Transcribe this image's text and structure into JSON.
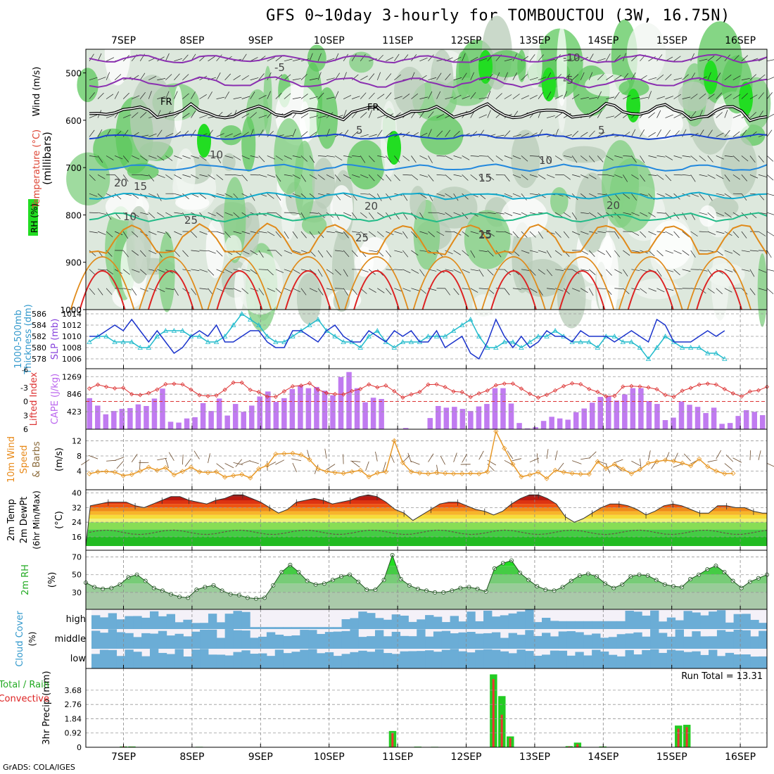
{
  "title": "GFS 0~10day 3-hourly for TOMBOUCTOU (3W, 16.75N)",
  "footer": "GrADS: COLA/IGES",
  "dates": [
    "7SEP",
    "8SEP",
    "9SEP",
    "10SEP",
    "11SEP",
    "12SEP",
    "13SEP",
    "14SEP",
    "15SEP",
    "16SEP"
  ],
  "colors": {
    "rh_green": "#3cc83c",
    "rh_light": "#c9dcc9",
    "cloud_blue": "#6badd6",
    "rain_green": "#22cc22",
    "rain_red": "#ee3333",
    "cape_purple": "#c07bf0",
    "slp_blue": "#1a33cc",
    "thick_cyan": "#22bbcc",
    "li_red": "#dd3333",
    "wind_orange": "#e89a2a",
    "dew_green": "#44aa44"
  },
  "chart_data": [
    {
      "type": "heatmap",
      "name": "upper-air",
      "ylabel_wind": "Wind (m/s)",
      "ylabel_temp": "Temperature (°C)",
      "ylabel_rh": "RH (%)",
      "ylabel_p": "(millibars)",
      "y_ticks": [
        500,
        600,
        700,
        800,
        900,
        1000
      ],
      "ylim": [
        450,
        1000
      ],
      "freezing_label": "FR",
      "isotherm_labels": [
        {
          "text": "-5",
          "lev": 505
        },
        {
          "text": "5",
          "lev": 635
        },
        {
          "text": "10",
          "lev": 695
        },
        {
          "text": "15",
          "lev": 768
        },
        {
          "text": "20",
          "lev": 800
        },
        {
          "text": "25",
          "lev": 850
        },
        {
          "text": "-10",
          "lev": 475
        },
        {
          "text": "-5",
          "lev": 525
        },
        {
          "text": "5",
          "lev": 640
        },
        {
          "text": "10",
          "lev": 705
        },
        {
          "text": "15",
          "lev": 760
        },
        {
          "text": "20",
          "lev": 805
        },
        {
          "text": "25",
          "lev": 860
        },
        {
          "text": "10",
          "lev": 700
        },
        {
          "text": "15",
          "lev": 760
        },
        {
          "text": "20",
          "lev": 818
        },
        {
          "text": "25",
          "lev": 870
        }
      ]
    },
    {
      "type": "line",
      "name": "thickness-slp",
      "ylabel_left": "1000-500mb Thickness (dm)",
      "ylabel_right": "SLP (mb)",
      "left_ticks": [
        578,
        580,
        582,
        584,
        586
      ],
      "right_ticks": [
        1006,
        1008,
        1010,
        1012,
        1014
      ],
      "series": [
        {
          "name": "SLP",
          "values": [
            1010,
            1010,
            1011,
            1012,
            1011,
            1013,
            1011,
            1009,
            1011,
            1009,
            1007,
            1008,
            1010,
            1011,
            1010,
            1012,
            1009,
            1009,
            1010,
            1011,
            1011,
            1009,
            1008,
            1008,
            1011,
            1011,
            1010,
            1009,
            1011,
            1012,
            1010,
            1009,
            1009,
            1011,
            1010,
            1009,
            1011,
            1010,
            1011,
            1009,
            1009,
            1011,
            1008,
            1009,
            1010,
            1007,
            1006,
            1009,
            1013,
            1010,
            1008,
            1010,
            1008,
            1009,
            1011,
            1010,
            1010,
            1009,
            1011,
            1010,
            1010,
            1010,
            1009,
            1010,
            1011,
            1010,
            1009,
            1013,
            1012,
            1009,
            1009,
            1009,
            1010,
            1011,
            1010,
            1011
          ]
        },
        {
          "name": "Thickness",
          "values": [
            581,
            582,
            582,
            581,
            581,
            581,
            580,
            580,
            582,
            583,
            583,
            583,
            582,
            582,
            581,
            581,
            582,
            584,
            586,
            585,
            584,
            582,
            581,
            581,
            582,
            583,
            584,
            585,
            583,
            582,
            581,
            581,
            580,
            582,
            583,
            581,
            580,
            581,
            581,
            581,
            582,
            582,
            582,
            583,
            584,
            585,
            582,
            580,
            580,
            581,
            581,
            580,
            581,
            582,
            582,
            583,
            582,
            581,
            581,
            581,
            580,
            582,
            582,
            581,
            581,
            580,
            578,
            580,
            582,
            581,
            580,
            580,
            580,
            579,
            579,
            578
          ]
        }
      ]
    },
    {
      "type": "bar",
      "name": "cape-li",
      "ylabel_li": "Lifted Index",
      "ylabel_cape": "CAPE (J/kg)",
      "li_ticks": [
        -3,
        0,
        3,
        6
      ],
      "li_top_tick": "-6",
      "cape_ticks": [
        423,
        846,
        1269
      ],
      "cape_values": [
        750,
        570,
        360,
        440,
        490,
        510,
        600,
        560,
        740,
        980,
        180,
        160,
        260,
        290,
        630,
        440,
        740,
        330,
        610,
        420,
        570,
        790,
        910,
        660,
        750,
        970,
        1060,
        990,
        1020,
        930,
        820,
        1260,
        1380,
        990,
        650,
        760,
        730,
        0,
        10,
        30,
        0,
        0,
        270,
        560,
        520,
        540,
        490,
        440,
        550,
        610,
        990,
        990,
        620,
        150,
        20,
        50,
        200,
        300,
        260,
        230,
        410,
        500,
        640,
        780,
        790,
        690,
        840,
        990,
        990,
        680,
        610,
        220,
        280,
        670,
        590,
        540,
        390,
        520,
        130,
        150,
        320,
        460,
        420,
        340
      ]
    },
    {
      "type": "line",
      "name": "wind10m",
      "ylabel_wind": "10m Wind",
      "ylabel_speed": "Speed",
      "ylabel_barbs": "& Barbs",
      "ylabel_units": "(m/s)",
      "y_ticks": [
        4,
        8,
        12
      ],
      "values": [
        3.3,
        3.8,
        3.9,
        3.7,
        2.8,
        3.1,
        4.0,
        5.0,
        4.2,
        4.9,
        3.0,
        3.9,
        5.0,
        3.8,
        3.6,
        3.8,
        2.4,
        2.8,
        3.1,
        2.2,
        4.6,
        5.5,
        8.5,
        8.6,
        8.7,
        8.3,
        7.0,
        4.6,
        3.9,
        3.6,
        3.4,
        3.8,
        4.2,
        2.5,
        3.5,
        3.8,
        12.0,
        6.2,
        3.8,
        3.5,
        3.3,
        3.6,
        3.4,
        3.3,
        3.3,
        3.4,
        3.3,
        3.8,
        14.5,
        10.0,
        5.8,
        2.5,
        3.0,
        3.7,
        2.0,
        4.2,
        3.7,
        3.4,
        3.2,
        3.2,
        6.5,
        4.7,
        5.8,
        4.5,
        3.3,
        4.4,
        6.1,
        6.5,
        6.9,
        6.6,
        6.1,
        5.4,
        7.2,
        5.2,
        4.0,
        3.3,
        3.4
      ]
    },
    {
      "type": "area",
      "name": "temp2m",
      "ylabel_temp": "2m Temp",
      "ylabel_dew": "2m DewPt",
      "ylabel_minmax": "(6hr Min/Max)",
      "ylabel_units": "(°C)",
      "y_ticks": [
        16,
        24,
        32,
        40
      ],
      "temp": [
        33,
        34,
        35,
        35,
        35,
        33,
        32,
        34,
        36,
        38,
        38,
        36,
        35,
        34,
        36,
        37,
        39,
        39,
        37,
        35,
        32,
        29,
        31,
        35,
        36,
        37,
        36,
        34,
        35,
        36,
        38,
        39,
        38,
        35,
        31,
        29,
        25,
        28,
        31,
        34,
        35,
        35,
        33,
        31,
        30,
        28,
        30,
        34,
        37,
        39,
        39,
        37,
        34,
        27,
        24,
        26,
        29,
        32,
        34,
        34,
        33,
        31,
        28,
        30,
        33,
        34,
        33,
        31,
        29,
        29,
        33,
        33,
        32,
        32,
        30,
        29
      ]
    },
    {
      "type": "area",
      "name": "rh2m",
      "ylabel": "2m RH",
      "ylabel_units": "(%)",
      "y_ticks": [
        30,
        50,
        70
      ],
      "values": [
        41,
        36,
        34,
        35,
        39,
        47,
        50,
        43,
        35,
        32,
        28,
        25,
        24,
        33,
        36,
        38,
        32,
        28,
        27,
        24,
        23,
        24,
        38,
        53,
        61,
        53,
        43,
        39,
        40,
        44,
        48,
        50,
        42,
        33,
        33,
        44,
        72,
        45,
        38,
        34,
        32,
        30,
        30,
        32,
        35,
        36,
        34,
        31,
        57,
        63,
        66,
        52,
        44,
        37,
        33,
        32,
        36,
        43,
        49,
        51,
        48,
        40,
        35,
        39,
        48,
        50,
        49,
        44,
        39,
        37,
        36,
        45,
        50,
        56,
        60,
        53,
        43,
        35,
        42,
        46,
        50
      ]
    },
    {
      "type": "heatmap",
      "name": "cloud",
      "ylabel": "Cloud Cover",
      "ylabel_units": "(%)",
      "levels": [
        "high",
        "middle",
        "low"
      ]
    },
    {
      "type": "bar",
      "name": "precip",
      "ylabel": "3hr Precip (mm)",
      "legend_total": "Total / Rain",
      "legend_conv": "Convective",
      "y_ticks": [
        0,
        0.92,
        1.84,
        2.76,
        3.68
      ],
      "run_total_label": "Run Total = 13.31",
      "bars": [
        {
          "idx": 4,
          "total": 0.05,
          "conv": 0.05
        },
        {
          "idx": 5,
          "total": 0.05,
          "conv": 0.03
        },
        {
          "idx": 13,
          "total": 0.03,
          "conv": 0.02
        },
        {
          "idx": 36,
          "total": 1.05,
          "conv": 0.92
        },
        {
          "idx": 39,
          "total": 0.04,
          "conv": 0.02
        },
        {
          "idx": 41,
          "total": 0.03,
          "conv": 0.02
        },
        {
          "idx": 48,
          "total": 4.7,
          "conv": 4.4
        },
        {
          "idx": 49,
          "total": 3.3,
          "conv": 2.1
        },
        {
          "idx": 50,
          "total": 0.7,
          "conv": 0.6
        },
        {
          "idx": 57,
          "total": 0.07,
          "conv": 0.05
        },
        {
          "idx": 58,
          "total": 0.3,
          "conv": 0.2
        },
        {
          "idx": 61,
          "total": 0.05,
          "conv": 0.03
        },
        {
          "idx": 70,
          "total": 1.4,
          "conv": 1.2
        },
        {
          "idx": 71,
          "total": 1.45,
          "conv": 1.3
        }
      ]
    }
  ]
}
